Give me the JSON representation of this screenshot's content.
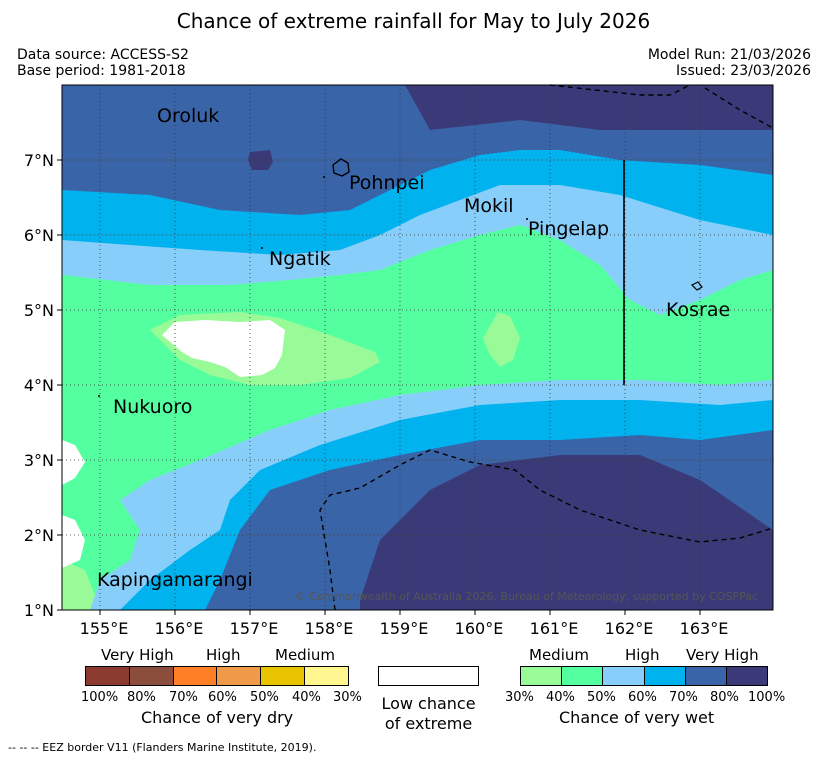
{
  "title": "Chance of extreme rainfall for May to July 2026",
  "meta": {
    "data_source": "Data source: ACCESS-S2",
    "base_period": "Base period: 1981-2018",
    "model_run": "Model Run: 21/03/2026",
    "issued": "Issued: 23/03/2026"
  },
  "map": {
    "lon_ticks": [
      "155°E",
      "156°E",
      "157°E",
      "158°E",
      "159°E",
      "160°E",
      "161°E",
      "162°E",
      "163°E"
    ],
    "lat_ticks": [
      "7°N",
      "6°N",
      "5°N",
      "4°N",
      "3°N",
      "2°N",
      "1°N"
    ],
    "places": {
      "oroluk": "Oroluk",
      "pohnpei": "Pohnpei",
      "mokil": "Mokil",
      "pingelap": "Pingelap",
      "ngatik": "Ngatik",
      "kosrae": "Kosrae",
      "nukuoro": "Nukuoro",
      "kapingamarangi": "Kapingamarangi"
    },
    "copyright": "© Commonwealth of Australia 2026, Bureau of Meteorology, supported by COSPPac"
  },
  "legend": {
    "dry": {
      "labels": [
        "Very High",
        "High",
        "Medium"
      ],
      "percents": [
        "100%",
        "80%",
        "70%",
        "60%",
        "50%",
        "40%",
        "30%"
      ],
      "colors": [
        "#8b3a30",
        "#8b4d3c",
        "#ff7f27",
        "#ee9a49",
        "#e9c400",
        "#fff68f"
      ],
      "caption": "Chance of very dry"
    },
    "low": {
      "caption_line1": "Low chance",
      "caption_line2": "of extreme"
    },
    "wet": {
      "labels": [
        "Medium",
        "High",
        "Very High"
      ],
      "percents": [
        "30%",
        "40%",
        "50%",
        "60%",
        "70%",
        "80%",
        "100%"
      ],
      "colors": [
        "#98fb98",
        "#54ff9f",
        "#87cefa",
        "#00b2ee",
        "#3a64a8",
        "#3b3a78"
      ],
      "caption": "Chance of very wet"
    }
  },
  "footer": "--  --  -- EEZ border V11 (Flanders Marine Institute, 2019)."
}
